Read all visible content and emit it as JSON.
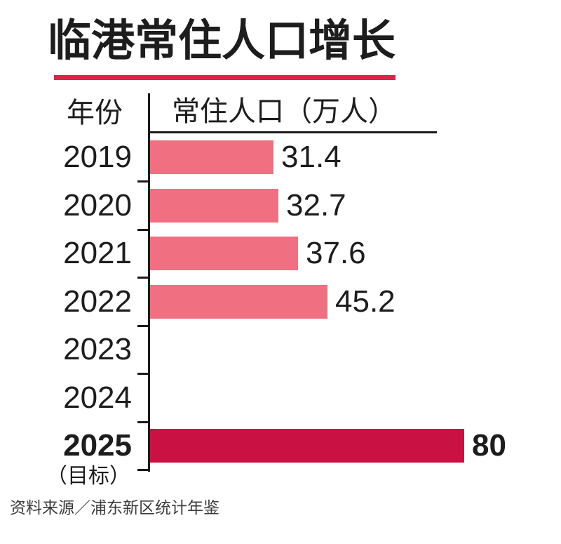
{
  "title": "临港常住人口增长",
  "table": {
    "year_header": "年份",
    "value_header": "常住人口（万人）"
  },
  "chart_data": {
    "type": "bar",
    "orientation": "horizontal",
    "title": "临港常住人口增长",
    "category_axis_label": "年份",
    "value_axis_label": "常住人口（万人）",
    "value_unit": "万人",
    "xlim": [
      0,
      85
    ],
    "grid": false,
    "legend": "none",
    "rows": [
      {
        "year": "2019",
        "value": 31.4,
        "label": "31.4",
        "highlight": false
      },
      {
        "year": "2020",
        "value": 32.7,
        "label": "32.7",
        "highlight": false
      },
      {
        "year": "2021",
        "value": 37.6,
        "label": "37.6",
        "highlight": false
      },
      {
        "year": "2022",
        "value": 45.2,
        "label": "45.2",
        "highlight": false
      },
      {
        "year": "2023",
        "value": null,
        "label": "",
        "highlight": false
      },
      {
        "year": "2024",
        "value": null,
        "label": "",
        "highlight": false
      },
      {
        "year": "2025",
        "value": 80,
        "label": "80",
        "note": "（目标）",
        "highlight": true
      }
    ]
  },
  "colors": {
    "bar": "#f06f81",
    "target_bar": "#c91243",
    "accent_line": "#dd2346",
    "axis": "#1a1a1a",
    "text": "#1d1d1d",
    "source_text": "#3c3c3c"
  },
  "source": "资料来源／浦东新区统计年鉴"
}
